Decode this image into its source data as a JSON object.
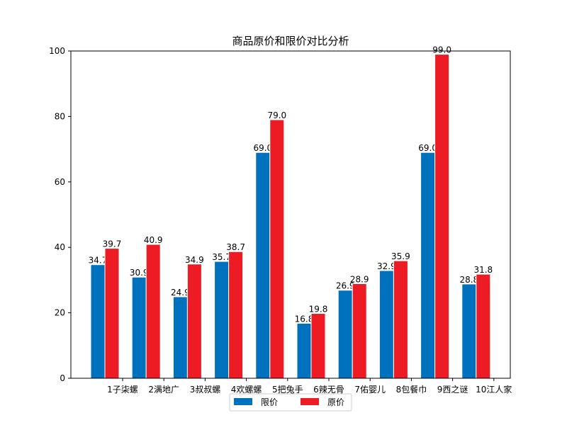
{
  "chart_data": {
    "type": "bar",
    "title": "商品原价和限价对比分析",
    "xlabel": "",
    "ylabel": "",
    "ylim": [
      0,
      100
    ],
    "yticks": [
      0,
      20,
      40,
      60,
      80,
      100
    ],
    "grid": false,
    "legend_position": "bottom-center",
    "categories": [
      "1子柒螺",
      "2满地广",
      "3叔叔螺",
      "4欢螺螺",
      "5把兔手",
      "6辣无骨",
      "7佑婴儿",
      "8包餐巾",
      "9西之谜",
      "10江人家"
    ],
    "series": [
      {
        "name": "限价",
        "color": "#0072bd",
        "values": [
          34.7,
          30.9,
          24.9,
          35.7,
          69.0,
          16.8,
          26.9,
          32.9,
          69.0,
          28.8
        ],
        "labels": [
          "34.7",
          "30.9",
          "24.9",
          "35.7",
          "69.0",
          "16.8",
          "26.9",
          "32.9",
          "69.0",
          "28.8"
        ]
      },
      {
        "name": "原价",
        "color": "#ed1c24",
        "values": [
          39.7,
          40.9,
          34.9,
          38.7,
          79.0,
          19.8,
          28.9,
          35.9,
          99.0,
          31.8
        ],
        "labels": [
          "39.7",
          "40.9",
          "34.9",
          "38.7",
          "79.0",
          "19.8",
          "28.9",
          "35.9",
          "99.0",
          "31.8"
        ]
      }
    ]
  }
}
